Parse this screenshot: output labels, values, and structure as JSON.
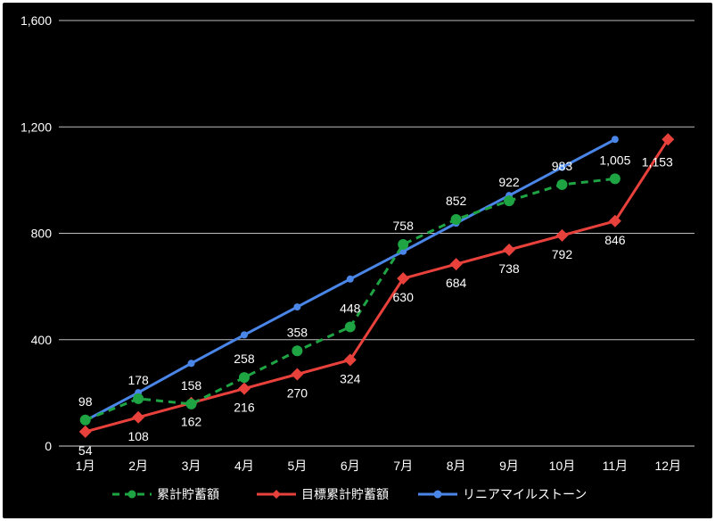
{
  "chart_data": {
    "type": "line",
    "categories": [
      "1月",
      "2月",
      "3月",
      "4月",
      "5月",
      "6月",
      "7月",
      "8月",
      "9月",
      "10月",
      "11月",
      "12月"
    ],
    "ylim": [
      0,
      1600
    ],
    "yticks": [
      0,
      400,
      800,
      1200,
      1600
    ],
    "ytick_labels": [
      "0",
      "400",
      "800",
      "1,200",
      "1,600"
    ],
    "grid": true,
    "legend_position": "bottom",
    "series": [
      {
        "name": "累計貯蓄額",
        "color": "#1fa444",
        "dash": true,
        "marker": "circle",
        "values": [
          98,
          178,
          158,
          258,
          358,
          448,
          758,
          852,
          922,
          983,
          1005,
          null
        ],
        "labels": [
          "98",
          "178",
          "158",
          "258",
          "358",
          "448",
          "758",
          "852",
          "922",
          "983",
          "1,005",
          null
        ],
        "label_side": [
          "above",
          "above",
          "above",
          "above",
          "above",
          "above",
          "above",
          "above",
          "above",
          "above",
          "above",
          null
        ]
      },
      {
        "name": "目標累計貯蓄額",
        "color": "#e8413b",
        "dash": false,
        "marker": "diamond",
        "values": [
          54,
          108,
          162,
          216,
          270,
          324,
          630,
          684,
          738,
          792,
          846,
          1153
        ],
        "labels": [
          "54",
          "108",
          "162",
          "216",
          "270",
          "324",
          "630",
          "684",
          "738",
          "792",
          "846",
          "1,153"
        ],
        "label_side": [
          "below",
          "below",
          "below",
          "below",
          "below",
          "below",
          "below",
          "below",
          "below",
          "below",
          "below",
          "right"
        ]
      },
      {
        "name": "リニアマイルストーン",
        "color": "#4a86e8",
        "dash": false,
        "marker": "circle-small",
        "values": [
          96,
          201,
          311,
          418,
          523,
          628,
          732,
          838,
          942,
          1048,
          1153,
          null
        ],
        "labels": null
      }
    ]
  }
}
